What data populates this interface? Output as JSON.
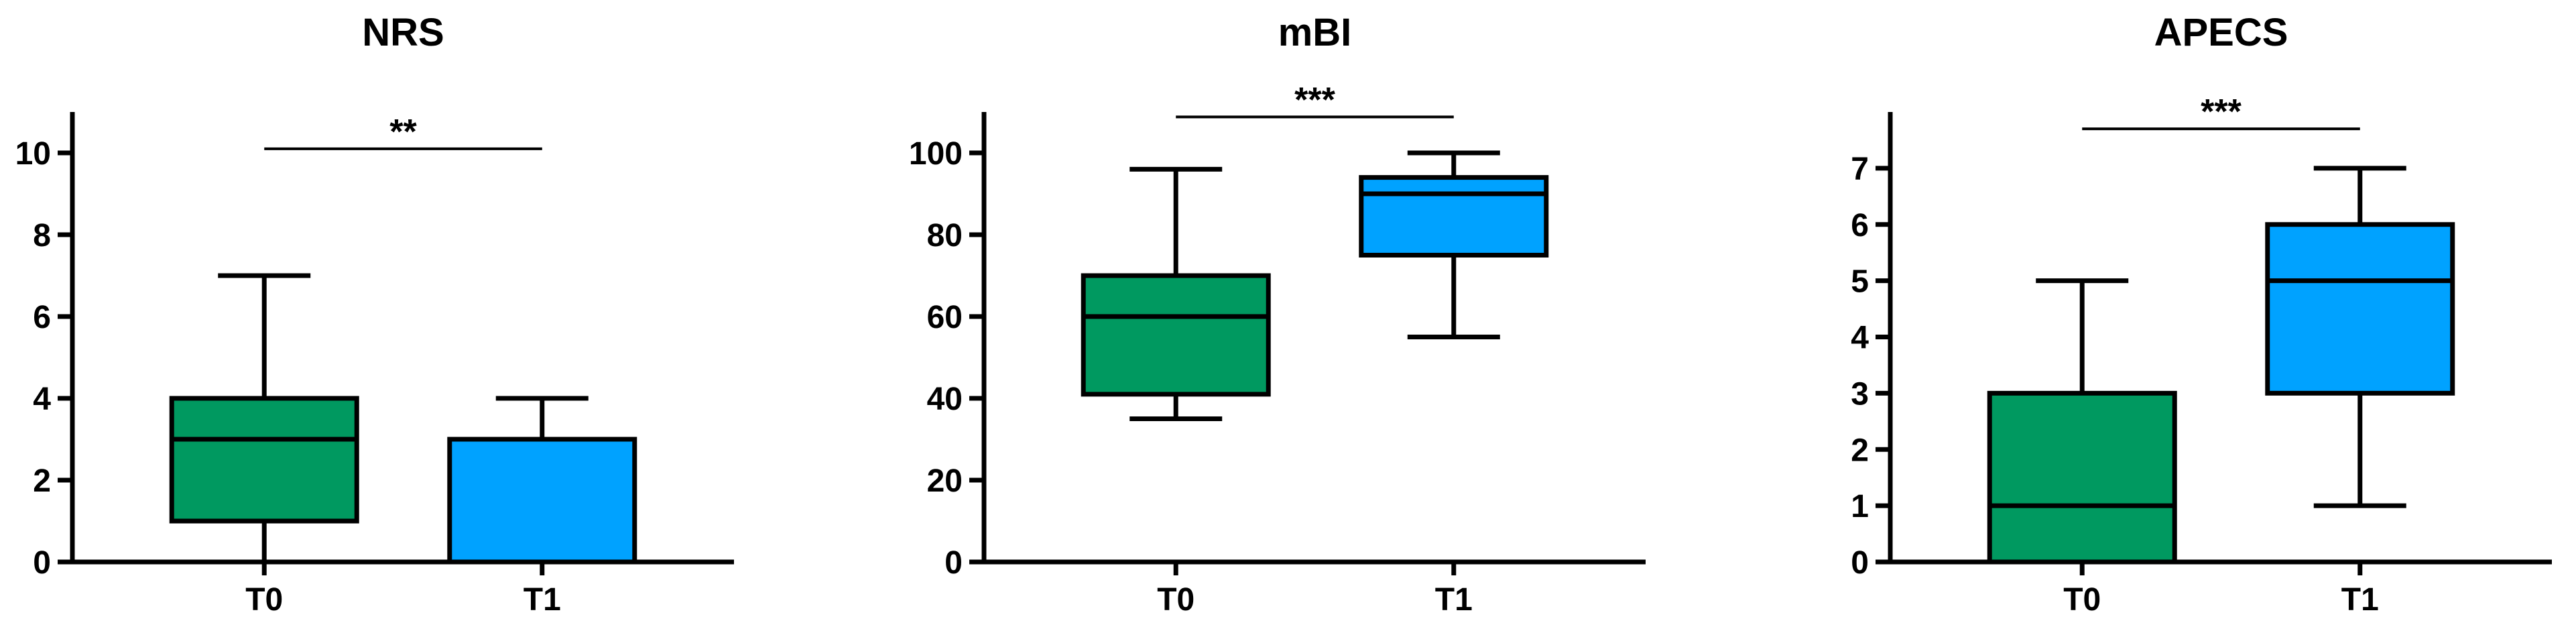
{
  "chart_data": [
    {
      "type": "box",
      "title": "NRS",
      "categories": [
        "T0",
        "T1"
      ],
      "boxes": [
        {
          "min": 0,
          "q1": 1,
          "median": 3,
          "q3": 4,
          "max": 7,
          "color": "#009960"
        },
        {
          "min": 0,
          "q1": 0,
          "median": 0,
          "q3": 3,
          "max": 4,
          "color": "#00a2ff"
        }
      ],
      "ylim": [
        0,
        11
      ],
      "yticks": [
        0,
        2,
        4,
        6,
        8,
        10
      ],
      "significance": {
        "label": "**",
        "y": 10.1
      }
    },
    {
      "type": "box",
      "title": "mBI",
      "categories": [
        "T0",
        "T1"
      ],
      "boxes": [
        {
          "min": 35,
          "q1": 41,
          "median": 60,
          "q3": 70,
          "max": 96,
          "color": "#009960"
        },
        {
          "min": 55,
          "q1": 75,
          "median": 90,
          "q3": 94,
          "max": 100,
          "color": "#00a2ff"
        }
      ],
      "ylim": [
        0,
        110
      ],
      "yticks": [
        0,
        20,
        40,
        60,
        80,
        100
      ],
      "significance": {
        "label": "***",
        "y": 108.8
      }
    },
    {
      "type": "box",
      "title": "APECS",
      "categories": [
        "T0",
        "T1"
      ],
      "boxes": [
        {
          "min": 0,
          "q1": 0,
          "median": 1,
          "q3": 3,
          "max": 5,
          "color": "#009960"
        },
        {
          "min": 1,
          "q1": 3,
          "median": 5,
          "q3": 6,
          "max": 7,
          "color": "#00a2ff"
        }
      ],
      "ylim": [
        0,
        8
      ],
      "yticks": [
        0,
        1,
        2,
        3,
        4,
        5,
        6,
        7
      ],
      "significance": {
        "label": "***",
        "y": 7.7
      }
    }
  ]
}
